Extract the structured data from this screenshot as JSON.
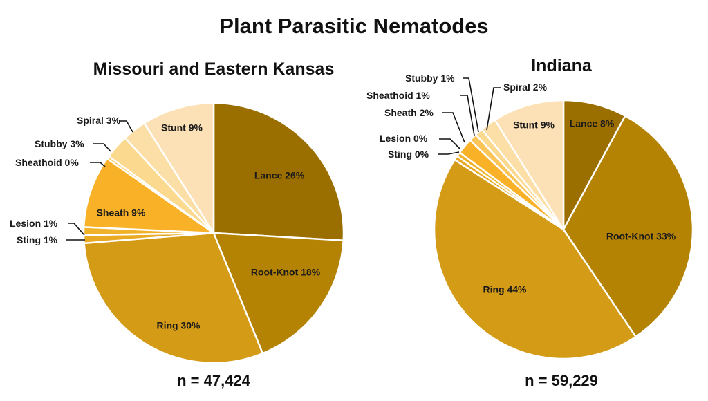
{
  "title": "Plant Parasitic Nematodes",
  "colors": {
    "Lance": "#9b6e00",
    "Root-Knot": "#b48304",
    "Ring": "#d49b17",
    "Sting": "#eaa923",
    "Lesion": "#f0b22a",
    "Sheath": "#f9b128",
    "Sheathoid": "#fbc55a",
    "Stubby": "#fbd98e",
    "Spiral": "#fcdfa6",
    "Stunt": "#fde1b6"
  },
  "chart_data": [
    {
      "type": "pie",
      "title": "Missouri and Eastern Kansas",
      "n_label": "n = 47,424",
      "slices": [
        {
          "name": "Lance",
          "value": 26,
          "label": "Lance 26%",
          "label_position": "inside"
        },
        {
          "name": "Root-Knot",
          "value": 18,
          "label": "Root-Knot 18%",
          "label_position": "inside"
        },
        {
          "name": "Ring",
          "value": 30,
          "label": "Ring 30%",
          "label_position": "inside"
        },
        {
          "name": "Sting",
          "value": 1,
          "label": "Sting 1%",
          "label_position": "outside"
        },
        {
          "name": "Lesion",
          "value": 1,
          "label": "Lesion 1%",
          "label_position": "outside"
        },
        {
          "name": "Sheath",
          "value": 9,
          "label": "Sheath 9%",
          "label_position": "inside"
        },
        {
          "name": "Sheathoid",
          "value": 0,
          "label": "Sheathoid 0%",
          "label_position": "outside"
        },
        {
          "name": "Stubby",
          "value": 3,
          "label": "Stubby 3%",
          "label_position": "outside"
        },
        {
          "name": "Spiral",
          "value": 3,
          "label": "Spiral 3%",
          "label_position": "outside"
        },
        {
          "name": "Stunt",
          "value": 9,
          "label": "Stunt 9%",
          "label_position": "inside"
        }
      ]
    },
    {
      "type": "pie",
      "title": "Indiana",
      "n_label": "n = 59,229",
      "slices": [
        {
          "name": "Lance",
          "value": 8,
          "label": "Lance 8%",
          "label_position": "inside"
        },
        {
          "name": "Root-Knot",
          "value": 33,
          "label": "Root-Knot 33%",
          "label_position": "inside"
        },
        {
          "name": "Ring",
          "value": 44,
          "label": "Ring 44%",
          "label_position": "inside"
        },
        {
          "name": "Sting",
          "value": 0,
          "label": "Sting 0%",
          "label_position": "outside"
        },
        {
          "name": "Lesion",
          "value": 0,
          "label": "Lesion 0%",
          "label_position": "outside"
        },
        {
          "name": "Sheath",
          "value": 2,
          "label": "Sheath 2%",
          "label_position": "outside"
        },
        {
          "name": "Sheathoid",
          "value": 1,
          "label": "Sheathoid 1%",
          "label_position": "outside"
        },
        {
          "name": "Stubby",
          "value": 1,
          "label": "Stubby 1%",
          "label_position": "outside"
        },
        {
          "name": "Spiral",
          "value": 2,
          "label": "Spiral 2%",
          "label_position": "outside"
        },
        {
          "name": "Stunt",
          "value": 9,
          "label": "Stunt 9%",
          "label_position": "inside"
        }
      ]
    }
  ]
}
